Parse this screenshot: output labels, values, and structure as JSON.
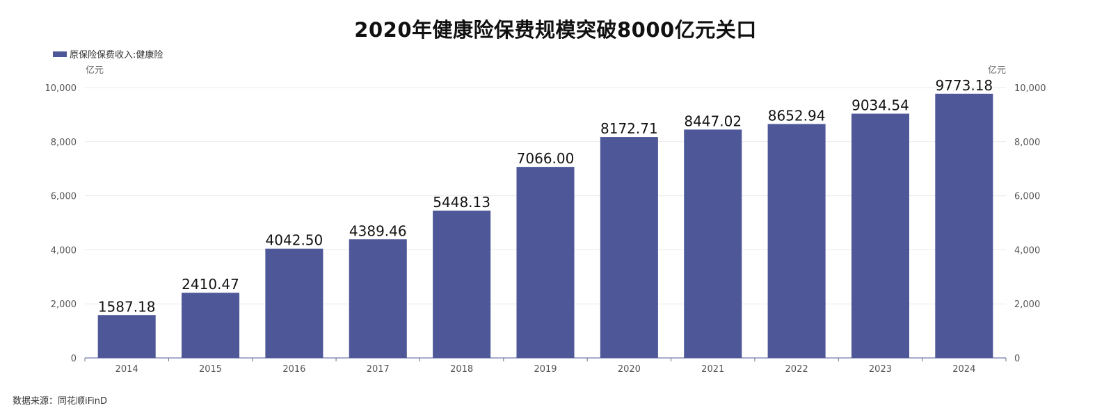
{
  "chart_data": {
    "type": "bar",
    "title": "2020年健康险保费规模突破8000亿元关口",
    "categories": [
      "2014",
      "2015",
      "2016",
      "2017",
      "2018",
      "2019",
      "2020",
      "2021",
      "2022",
      "2023",
      "2024"
    ],
    "series": [
      {
        "name": "原保险保费收入:健康险",
        "values": [
          1587.18,
          2410.47,
          4042.5,
          4389.46,
          5448.13,
          7066.0,
          8172.71,
          8447.02,
          8652.94,
          9034.54,
          9773.18
        ],
        "labels": [
          "1587.18",
          "2410.47",
          "4042.50",
          "4389.46",
          "5448.13",
          "7066.00",
          "8172.71",
          "8447.02",
          "8652.94",
          "9034.54",
          "9773.18"
        ]
      }
    ],
    "ylim": [
      0,
      10000
    ],
    "yticks": [
      0,
      2000,
      4000,
      6000,
      8000,
      10000
    ],
    "ytick_labels": [
      "0",
      "2,000",
      "4,000",
      "6,000",
      "8,000",
      "10,000"
    ],
    "y_unit_left": "亿元",
    "y_unit_right": "亿元",
    "grid": true,
    "legend_position": "top-left",
    "bar_color": "#4e5899",
    "source": "数据来源：同花顺iFinD"
  }
}
